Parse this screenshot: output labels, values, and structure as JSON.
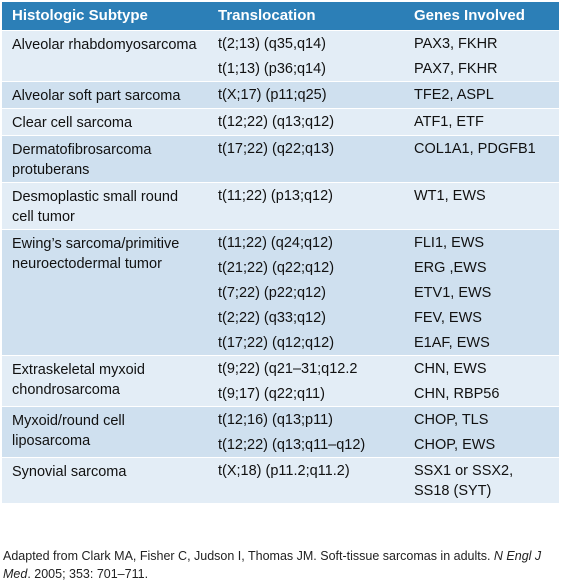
{
  "table": {
    "headers": [
      "Histologic Subtype",
      "Translocation",
      "Genes Involved"
    ],
    "groups": [
      {
        "subtype": "Alveolar rhabdomyosarcoma",
        "rows": [
          {
            "translocation": "t(2;13) (q35,q14)",
            "genes": "PAX3, FKHR"
          },
          {
            "translocation": "t(1;13) (p36;q14)",
            "genes": "PAX7, FKHR"
          }
        ]
      },
      {
        "subtype": "Alveolar soft part sarcoma",
        "rows": [
          {
            "translocation": "t(X;17) (p11;q25)",
            "genes": "TFE2, ASPL"
          }
        ]
      },
      {
        "subtype": "Clear cell sarcoma",
        "rows": [
          {
            "translocation": "t(12;22) (q13;q12)",
            "genes": "ATF1, ETF"
          }
        ]
      },
      {
        "subtype": "Dermatofibrosarcoma protuberans",
        "rows": [
          {
            "translocation": "t(17;22) (q22;q13)",
            "genes": "COL1A1, PDGFB1"
          }
        ]
      },
      {
        "subtype": "Desmoplastic small round cell tumor",
        "rows": [
          {
            "translocation": "t(11;22) (p13;q12)",
            "genes": "WT1, EWS"
          }
        ]
      },
      {
        "subtype": "Ewing’s sarcoma/primitive neuroectodermal tumor",
        "rows": [
          {
            "translocation": "t(11;22) (q24;q12)",
            "genes": "FLI1, EWS"
          },
          {
            "translocation": "t(21;22) (q22;q12)",
            "genes": "ERG ,EWS"
          },
          {
            "translocation": "t(7;22) (p22;q12)",
            "genes": "ETV1, EWS"
          },
          {
            "translocation": "t(2;22) (q33;q12)",
            "genes": "FEV, EWS"
          },
          {
            "translocation": "t(17;22) (q12;q12)",
            "genes": "E1AF, EWS"
          }
        ]
      },
      {
        "subtype": "Extraskeletal myxoid chondrosarcoma",
        "rows": [
          {
            "translocation": "t(9;22) (q21–31;q12.2",
            "genes": "CHN, EWS"
          },
          {
            "translocation": "t(9;17) (q22;q11)",
            "genes": "CHN, RBP56"
          }
        ]
      },
      {
        "subtype": "Myxoid/round cell liposarcoma",
        "rows": [
          {
            "translocation": "t(12;16) (q13;p11)",
            "genes": "CHOP, TLS"
          },
          {
            "translocation": "t(12;22) (q13;q11–q12)",
            "genes": "CHOP, EWS"
          }
        ]
      },
      {
        "subtype": "Synovial sarcoma",
        "rows": [
          {
            "translocation": "t(X;18) (p11.2;q11.2)",
            "genes": "SSX1 or SSX2, SS18 (SYT)"
          }
        ]
      }
    ]
  },
  "footnote": {
    "text_before": "Adapted from Clark MA, Fisher C, Judson I, Thomas JM. Soft-tissue sarcomas in adults. ",
    "journal": "N Engl J Med",
    "text_after": ". 2005; 353: 701–711."
  },
  "colors": {
    "header_bg": "#2c7fb7",
    "row_light": "#e3edf6",
    "row_dark": "#cfe0ef"
  }
}
